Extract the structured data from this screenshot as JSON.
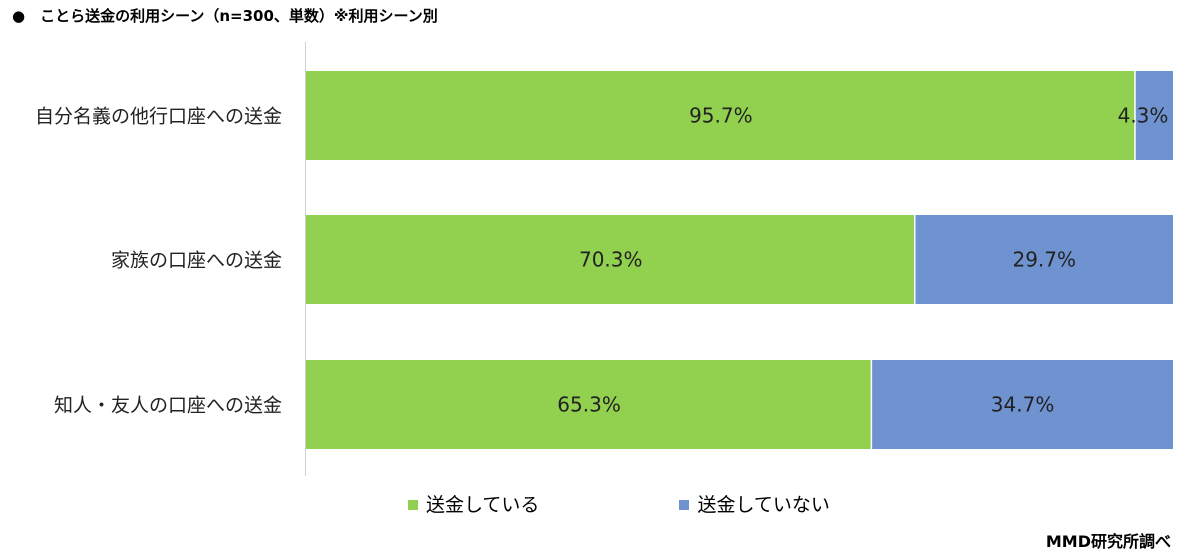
{
  "title": "●　ことら送金の利用シーン（n=300、単数）※利用シーン別",
  "source": "MMD研究所調べ",
  "chart_data": {
    "type": "bar",
    "orientation": "horizontal",
    "stacked": "100%",
    "categories": [
      "自分名義の他行口座への送金",
      "家族の口座への送金",
      "知人・友人の口座への送金"
    ],
    "series": [
      {
        "name": "送金している",
        "color": "#92d050",
        "values": [
          95.7,
          70.3,
          65.3
        ],
        "labels": [
          "95.7%",
          "70.3%",
          "65.3%"
        ]
      },
      {
        "name": "送金していない",
        "color": "#6f93d1",
        "values": [
          4.3,
          29.7,
          34.7
        ],
        "labels": [
          "4.3%",
          "29.7%",
          "34.7%"
        ]
      }
    ],
    "xlim": [
      0,
      100
    ],
    "grid": false,
    "legend": "bottom"
  }
}
